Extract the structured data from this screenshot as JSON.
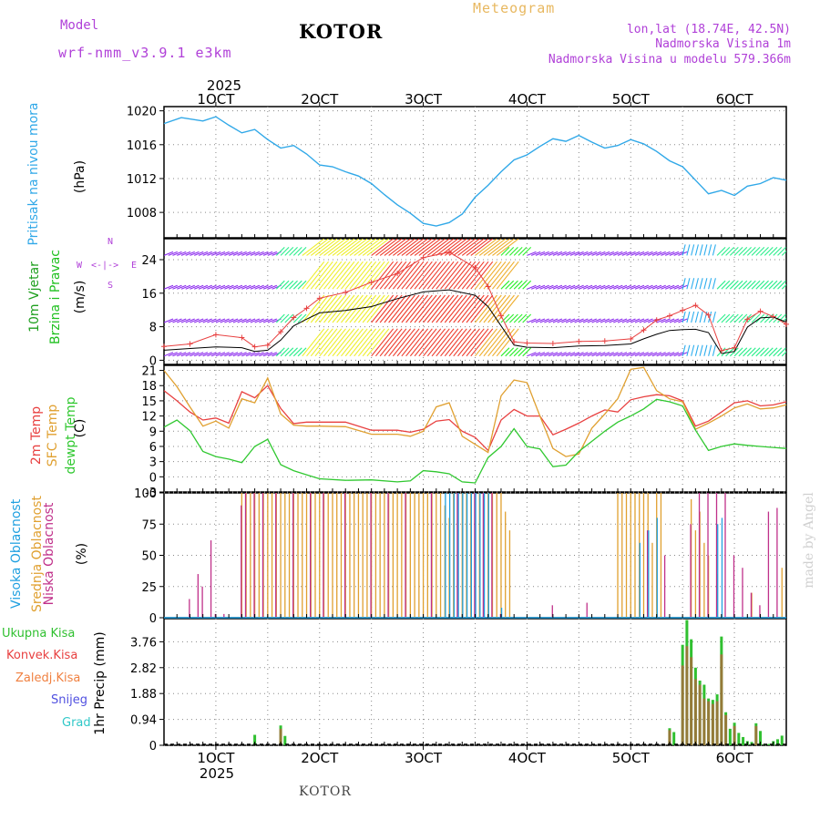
{
  "header": {
    "model_label": "Model",
    "model_name": "wrf-nmm_v3.9.1 e3km",
    "location": "KOTOR",
    "meteogram": "Meteogram",
    "coords": "lon,lat (18.74E, 42.5N)",
    "altitude": "Nadmorska Visina 1m",
    "model_altitude": "Nadmorska Visina u modelu 579.366m",
    "footer": "KOTOR",
    "credit": "made by Angel"
  },
  "colors": {
    "purple": "#b040d8",
    "orange": "#e8b860",
    "pressure": "#30a8e8",
    "temp2m": "#e84040",
    "sfc": "#e0a030",
    "dew": "#30c830",
    "wind_speed_label": "#20a020",
    "wind_dir_label": "#20c020",
    "high_cloud": "#20a0e0",
    "mid_cloud": "#e0a030",
    "low_cloud": "#c0308a",
    "total_precip": "#30c030",
    "conv_precip": "#e84040",
    "frontal_precip": "#f08040",
    "snow": "#5050e0",
    "hail": "#30c8c8"
  },
  "time_axis": {
    "year": "2025",
    "ticks": [
      "1OCT",
      "2OCT",
      "3OCT",
      "4OCT",
      "5OCT",
      "6OCT"
    ]
  },
  "panels": {
    "pressure": {
      "label": "Pritisak na nivou mora",
      "unit": "(hPa)"
    },
    "wind": {
      "label1": "10m Vjetar",
      "label2": "Brzina i Pravac",
      "unit": "(m/s)",
      "compass": "N",
      "compass_w": "W",
      "compass_e": "E",
      "compass_s": "S"
    },
    "temperature": {
      "label1": "2m Temp",
      "label2": "SFC Temp",
      "label3": "dewpt Temp",
      "unit": "(C)"
    },
    "cloud": {
      "label1": "Visoka Oblacnost",
      "label2": "Srednja Oblacnost",
      "label3": "Niska Oblacnost",
      "unit": "(%)"
    },
    "precip": {
      "unit": "1hr Precip (mm)",
      "legend": [
        "Ukupna Kisa",
        "Konvek.Kisa",
        "Zaledj.Kisa",
        "Snijeg",
        "Grad"
      ]
    }
  },
  "chart_data": [
    {
      "type": "line",
      "title": "Pritisak na nivou mora",
      "ylabel": "(hPa)",
      "x_unit": "hours from 1OCT 00Z",
      "ylim": [
        1005,
        1020.5
      ],
      "yticks": [
        1008,
        1012,
        1016,
        1020
      ],
      "xlim": [
        -12,
        132
      ],
      "x": [
        -12,
        -8,
        -3,
        0,
        3,
        6,
        9,
        12,
        15,
        18,
        21,
        24,
        27,
        30,
        33,
        36,
        39,
        42,
        45,
        48,
        51,
        54,
        57,
        60,
        63,
        66,
        69,
        72,
        75,
        78,
        81,
        84,
        87,
        90,
        93,
        96,
        99,
        102,
        105,
        108,
        111,
        114,
        117,
        120,
        123,
        126,
        129,
        132
      ],
      "series": [
        {
          "name": "pressure",
          "values": [
            1018.5,
            1019.2,
            1018.8,
            1019.3,
            1018.3,
            1017.4,
            1017.8,
            1016.6,
            1015.6,
            1015.9,
            1014.9,
            1013.6,
            1013.4,
            1012.8,
            1012.3,
            1011.4,
            1010.1,
            1008.9,
            1007.9,
            1006.7,
            1006.4,
            1006.8,
            1007.8,
            1009.8,
            1011.2,
            1012.8,
            1014.2,
            1014.8,
            1015.8,
            1016.7,
            1016.4,
            1017.1,
            1016.3,
            1015.6,
            1015.9,
            1016.6,
            1016.1,
            1015.2,
            1014.1,
            1013.4,
            1011.8,
            1010.2,
            1010.6,
            1010.0,
            1011.1,
            1011.4,
            1012.1,
            1011.8
          ]
        }
      ]
    },
    {
      "type": "line",
      "title": "10m Vjetar Brzina i Pravac",
      "ylabel": "(m/s)",
      "x_unit": "hours from 1OCT 00Z",
      "ylim": [
        -1,
        29
      ],
      "yticks": [
        0,
        8,
        16,
        24
      ],
      "xlim": [
        -12,
        132
      ],
      "x": [
        -12,
        -6,
        0,
        6,
        9,
        12,
        15,
        18,
        21,
        24,
        30,
        36,
        42,
        48,
        54,
        60,
        63,
        66,
        69,
        72,
        78,
        84,
        90,
        96,
        99,
        102,
        105,
        108,
        111,
        114,
        117,
        120,
        123,
        126,
        129,
        132
      ],
      "series": [
        {
          "name": "mean speed",
          "values": [
            2.4,
            2.8,
            3.2,
            3.0,
            2.1,
            2.4,
            4.8,
            8.2,
            9.8,
            11.3,
            11.9,
            12.8,
            14.7,
            16.3,
            16.8,
            15.5,
            12.8,
            8.2,
            3.6,
            3.1,
            3.0,
            3.4,
            3.5,
            3.9,
            5.1,
            6.2,
            7.1,
            7.3,
            7.4,
            6.6,
            1.6,
            2.1,
            7.9,
            10.1,
            10.3,
            9.1
          ]
        },
        {
          "name": "gusts",
          "values": [
            3.3,
            3.9,
            6.1,
            5.4,
            3.2,
            3.6,
            6.8,
            10.2,
            12.4,
            14.8,
            16.2,
            18.6,
            20.7,
            24.5,
            25.8,
            22.1,
            17.6,
            10.6,
            4.4,
            4.1,
            4.0,
            4.5,
            4.6,
            5.1,
            7.2,
            9.6,
            10.6,
            11.9,
            13.1,
            10.8,
            2.3,
            3.0,
            9.8,
            11.7,
            10.4,
            8.6
          ]
        }
      ]
    },
    {
      "type": "line",
      "title": "2m Temp / SFC Temp / dewpt Temp",
      "ylabel": "(C)",
      "x_unit": "hours from 1OCT 00Z",
      "ylim": [
        -3,
        22
      ],
      "yticks": [
        -3,
        0,
        3,
        6,
        9,
        12,
        15,
        18,
        21
      ],
      "xlim": [
        -12,
        132
      ],
      "x": [
        -12,
        -9,
        -6,
        -3,
        0,
        3,
        6,
        9,
        12,
        15,
        18,
        21,
        24,
        30,
        36,
        42,
        45,
        48,
        51,
        54,
        57,
        60,
        63,
        66,
        69,
        72,
        75,
        78,
        81,
        84,
        87,
        90,
        93,
        96,
        99,
        102,
        105,
        108,
        111,
        114,
        117,
        120,
        123,
        126,
        129,
        132
      ],
      "series": [
        {
          "name": "2m Temp",
          "values": [
            17.0,
            15.0,
            12.8,
            11.2,
            11.6,
            10.6,
            16.8,
            15.6,
            18.0,
            13.5,
            10.5,
            10.8,
            10.8,
            10.8,
            9.2,
            9.2,
            8.8,
            9.4,
            11.0,
            11.3,
            9.0,
            7.8,
            5.2,
            11.2,
            13.3,
            12.0,
            12.0,
            8.3,
            9.4,
            10.6,
            12.0,
            13.2,
            12.8,
            15.2,
            15.8,
            16.2,
            16.0,
            15.0,
            10.0,
            11.0,
            12.8,
            14.6,
            15.0,
            14.0,
            14.2,
            14.8
          ]
        },
        {
          "name": "SFC Temp",
          "values": [
            21.0,
            17.8,
            13.8,
            10.0,
            11.0,
            9.6,
            15.4,
            14.6,
            19.5,
            12.4,
            10.2,
            10.0,
            10.0,
            9.9,
            8.4,
            8.4,
            8.0,
            9.0,
            13.8,
            14.6,
            8.0,
            6.4,
            4.8,
            16.0,
            19.1,
            18.6,
            12.0,
            5.6,
            4.0,
            4.5,
            9.6,
            12.4,
            15.4,
            21.2,
            21.6,
            17.0,
            15.4,
            14.8,
            9.4,
            10.6,
            12.0,
            13.6,
            14.4,
            13.4,
            13.6,
            14.2
          ]
        },
        {
          "name": "dewpt Temp",
          "values": [
            9.8,
            11.2,
            9.1,
            5.0,
            4.0,
            3.5,
            2.8,
            6.0,
            7.4,
            2.4,
            1.2,
            0.4,
            -0.4,
            -0.7,
            -0.6,
            -1.0,
            -0.8,
            1.2,
            1.0,
            0.6,
            -1.0,
            -1.2,
            3.8,
            6.0,
            9.5,
            6.0,
            5.5,
            2.0,
            2.3,
            5.0,
            7.0,
            9.0,
            10.8,
            12.0,
            13.4,
            15.3,
            14.8,
            14.0,
            9.2,
            5.2,
            6.0,
            6.5,
            6.2,
            6.0,
            5.8,
            5.6
          ]
        }
      ]
    },
    {
      "type": "bar",
      "title": "Visoka / Srednja / Niska Oblacnost",
      "ylabel": "(%)",
      "x_unit": "hours from 1OCT 00Z",
      "ylim": [
        0,
        100
      ],
      "yticks": [
        0,
        25,
        50,
        75,
        100
      ],
      "xlim": [
        -12,
        132
      ],
      "series": [
        {
          "name": "Visoka Oblacnost",
          "x": [
            53,
            54,
            55,
            56,
            57,
            58,
            59,
            60,
            61,
            62,
            63,
            66,
            98,
            100,
            102,
            116,
            117
          ],
          "values": [
            100,
            100,
            100,
            100,
            100,
            100,
            100,
            100,
            100,
            100,
            100,
            8,
            60,
            70,
            80,
            75,
            80
          ]
        },
        {
          "name": "Srednja Oblacnost",
          "values": [
            100,
            100,
            100,
            100,
            100,
            100,
            100,
            100,
            100,
            100,
            100,
            100,
            100,
            100,
            100,
            100,
            100,
            100,
            100,
            100,
            100,
            100,
            100,
            100,
            100,
            100,
            100,
            100,
            100,
            100,
            100,
            100,
            100,
            100,
            100,
            100,
            100,
            100,
            100,
            100,
            100,
            100,
            100,
            100,
            100,
            100,
            100,
            90,
            80,
            100,
            100,
            100,
            100,
            100,
            100,
            100,
            100,
            100,
            100,
            100,
            100,
            85,
            70,
            100,
            100,
            100,
            100,
            100,
            100,
            100,
            100,
            60,
            100,
            100,
            95,
            70,
            85,
            60,
            50,
            35,
            20,
            40
          ],
          "x": [
            6,
            7,
            8,
            9,
            10,
            11,
            12,
            13,
            14,
            15,
            16,
            17,
            18,
            19,
            20,
            21,
            22,
            23,
            24,
            25,
            26,
            27,
            28,
            29,
            30,
            31,
            32,
            33,
            34,
            35,
            36,
            37,
            38,
            39,
            40,
            41,
            42,
            43,
            44,
            45,
            46,
            47,
            48,
            49,
            50,
            51,
            52,
            53,
            54,
            55,
            56,
            57,
            58,
            59,
            60,
            61,
            62,
            63,
            64,
            65,
            66,
            67,
            68,
            93,
            94,
            95,
            96,
            97,
            98,
            99,
            100,
            101,
            102,
            103,
            110,
            111,
            112,
            113,
            114,
            116,
            124,
            131
          ]
        },
        {
          "name": "Niska Oblacnost",
          "x": [
            -6,
            -4,
            -3,
            -1,
            0,
            2,
            6,
            7,
            9,
            11,
            14,
            18,
            22,
            25,
            30,
            36,
            40,
            44,
            50,
            56,
            60,
            62,
            64,
            66,
            78,
            86,
            100,
            104,
            110,
            112,
            114,
            116,
            118,
            120,
            122,
            124,
            126,
            128,
            130
          ],
          "values": [
            15,
            35,
            25,
            62,
            3,
            3,
            90,
            100,
            100,
            100,
            100,
            100,
            100,
            100,
            100,
            100,
            100,
            100,
            100,
            100,
            100,
            100,
            100,
            3,
            10,
            12,
            70,
            50,
            75,
            100,
            100,
            100,
            100,
            50,
            40,
            20,
            10,
            85,
            88
          ]
        }
      ]
    },
    {
      "type": "bar",
      "title": "1hr Precip",
      "ylabel": "1hr Precip (mm)",
      "x_unit": "hours from 1OCT 00Z",
      "ylim": [
        0,
        4.6
      ],
      "yticks": [
        0,
        0.94,
        1.88,
        2.82,
        3.76
      ],
      "xlim": [
        -12,
        132
      ],
      "series": [
        {
          "name": "Ukupna Kisa",
          "x": [
            9,
            15,
            16,
            105,
            106,
            108,
            109,
            110,
            111,
            112,
            113,
            114,
            115,
            116,
            117,
            118,
            119,
            120,
            121,
            122,
            123,
            124,
            125,
            126,
            127,
            128,
            129,
            130,
            131
          ],
          "values": [
            0.38,
            0.72,
            0.34,
            0.62,
            0.48,
            3.65,
            4.55,
            3.85,
            2.82,
            2.35,
            2.2,
            1.7,
            1.65,
            1.85,
            3.95,
            1.2,
            0.6,
            0.82,
            0.45,
            0.3,
            0.15,
            0.12,
            0.8,
            0.52,
            0.05,
            0.05,
            0.15,
            0.22,
            0.35
          ]
        },
        {
          "name": "Konvek.Kisa",
          "x": [
            15,
            105,
            108,
            109,
            110,
            111,
            112,
            113,
            114,
            115,
            116,
            117,
            118,
            120,
            125
          ],
          "values": [
            0.6,
            0.55,
            2.9,
            3.6,
            3.2,
            2.4,
            2.2,
            1.7,
            1.6,
            1.5,
            1.6,
            3.3,
            1.1,
            0.7,
            0.7
          ]
        },
        {
          "name": "Zaledj.Kisa",
          "values": []
        },
        {
          "name": "Snijeg",
          "values": []
        },
        {
          "name": "Grad",
          "values": []
        }
      ]
    }
  ]
}
